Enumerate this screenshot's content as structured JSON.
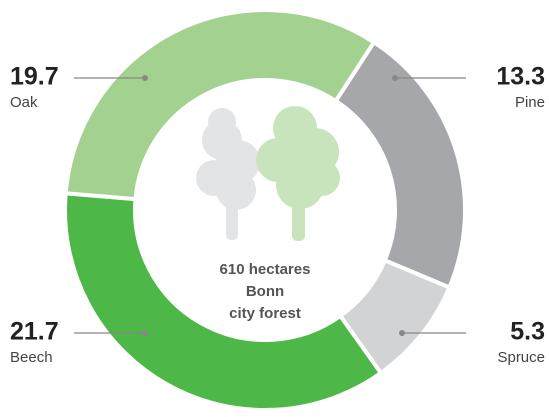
{
  "chart_data": {
    "type": "pie",
    "donut": true,
    "categories": [
      "Oak",
      "Pine",
      "Spruce",
      "Beech"
    ],
    "values": [
      19.7,
      13.3,
      5.3,
      21.7
    ],
    "colors": [
      "#a3d18f",
      "#a6a7aa",
      "#d2d3d4",
      "#4db848"
    ],
    "center_text": [
      "610 hectares",
      "Bonn",
      "city forest"
    ]
  }
}
